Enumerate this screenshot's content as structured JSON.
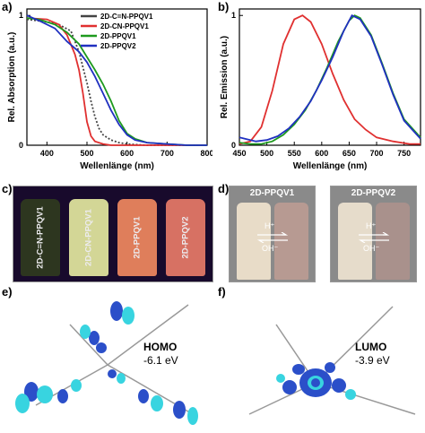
{
  "panels": {
    "a": {
      "letter": "a)"
    },
    "b": {
      "letter": "b)"
    },
    "c": {
      "letter": "c)"
    },
    "d": {
      "letter": "d)"
    },
    "e": {
      "letter": "e)"
    },
    "f": {
      "letter": "f)"
    }
  },
  "chart_data": [
    {
      "type": "line",
      "panel": "a",
      "xlabel": "Wellenlänge (nm)",
      "ylabel": "Rel. Absorption (a.u.)",
      "xlim": [
        350,
        800
      ],
      "ylim": [
        0,
        1.05
      ],
      "xticks": [
        "400",
        "500",
        "600",
        "700",
        "800"
      ],
      "yticks": [
        "0",
        "1"
      ],
      "legend": {
        "placement": "top-right"
      },
      "series": [
        {
          "name": "2D-C=N-PPQV1",
          "color": "#444444",
          "dash": "dotted",
          "x": [
            350,
            400,
            430,
            460,
            480,
            500,
            510,
            520,
            530,
            540,
            560,
            580,
            600,
            650,
            700,
            800
          ],
          "y": [
            0.97,
            0.95,
            0.93,
            0.88,
            0.72,
            0.48,
            0.34,
            0.22,
            0.13,
            0.08,
            0.04,
            0.02,
            0.01,
            0.0,
            0.0,
            0.0
          ]
        },
        {
          "name": "2D-CN-PPQV1",
          "color": "#e03030",
          "dash": "solid",
          "x": [
            350,
            400,
            430,
            450,
            470,
            480,
            490,
            500,
            510,
            520,
            540,
            560,
            600,
            650,
            700,
            800
          ],
          "y": [
            0.98,
            0.97,
            0.93,
            0.85,
            0.7,
            0.58,
            0.4,
            0.18,
            0.07,
            0.03,
            0.01,
            0.0,
            0.0,
            0.0,
            0.0,
            0.0
          ]
        },
        {
          "name": "2D-PPQV1",
          "color": "#1e9a1e",
          "dash": "solid",
          "x": [
            350,
            380,
            420,
            450,
            480,
            500,
            520,
            540,
            560,
            580,
            600,
            620,
            650,
            700,
            750,
            800
          ],
          "y": [
            0.98,
            0.97,
            0.93,
            0.87,
            0.78,
            0.68,
            0.58,
            0.47,
            0.34,
            0.19,
            0.09,
            0.05,
            0.02,
            0.01,
            0.0,
            0.0
          ]
        },
        {
          "name": "2D-PPQV2",
          "color": "#2030c0",
          "dash": "solid",
          "x": [
            350,
            380,
            420,
            450,
            480,
            500,
            520,
            540,
            560,
            580,
            600,
            620,
            650,
            700,
            750,
            800
          ],
          "y": [
            1.0,
            0.96,
            0.9,
            0.8,
            0.72,
            0.64,
            0.53,
            0.4,
            0.27,
            0.16,
            0.08,
            0.04,
            0.02,
            0.01,
            0.0,
            0.0
          ]
        }
      ]
    },
    {
      "type": "line",
      "panel": "b",
      "xlabel": "Wellenlänge (nm)",
      "ylabel": "Rel. Emission (a.u.)",
      "xlim": [
        450,
        780
      ],
      "ylim": [
        0,
        1.05
      ],
      "xticks": [
        "450",
        "500",
        "550",
        "600",
        "650",
        "700",
        "750"
      ],
      "yticks": [
        "0",
        "1"
      ],
      "series": [
        {
          "name": "red",
          "color": "#e03030",
          "x": [
            450,
            470,
            490,
            510,
            530,
            550,
            565,
            580,
            600,
            620,
            640,
            660,
            680,
            700,
            730,
            760,
            780
          ],
          "y": [
            0.01,
            0.03,
            0.14,
            0.42,
            0.78,
            0.97,
            1.0,
            0.95,
            0.78,
            0.55,
            0.35,
            0.2,
            0.12,
            0.06,
            0.03,
            0.01,
            0.01
          ]
        },
        {
          "name": "green",
          "color": "#1e9a1e",
          "x": [
            450,
            470,
            490,
            510,
            530,
            550,
            570,
            590,
            610,
            630,
            650,
            660,
            670,
            690,
            710,
            730,
            750,
            780
          ],
          "y": [
            0.02,
            0.01,
            0.01,
            0.03,
            0.08,
            0.16,
            0.27,
            0.42,
            0.6,
            0.8,
            0.96,
            1.0,
            0.98,
            0.85,
            0.63,
            0.4,
            0.2,
            0.06
          ]
        },
        {
          "name": "blue",
          "color": "#2030c0",
          "x": [
            450,
            460,
            480,
            500,
            520,
            540,
            560,
            580,
            600,
            620,
            640,
            655,
            670,
            690,
            710,
            730,
            750,
            780
          ],
          "y": [
            0.06,
            0.05,
            0.03,
            0.04,
            0.07,
            0.13,
            0.22,
            0.34,
            0.5,
            0.68,
            0.88,
            1.0,
            0.97,
            0.84,
            0.62,
            0.39,
            0.19,
            0.05
          ]
        }
      ]
    }
  ],
  "vials_c": {
    "labels": [
      "2D-C=N-PPQV1",
      "2D-CN-PPQV1",
      "2D-PPQV1",
      "2D-PPQV2"
    ],
    "colors": [
      "#2f3a1e",
      "#e3e8a0",
      "#f08860",
      "#e87a68"
    ]
  },
  "vials_d": {
    "labels": [
      "2D-PPQV1",
      "2D-PPQV2"
    ],
    "acid_label": "H⁺",
    "base_label": "OH⁻"
  },
  "orbitals": {
    "homo": {
      "name": "HOMO",
      "energy": "-6.1 eV"
    },
    "lumo": {
      "name": "LUMO",
      "energy": "-3.9 eV"
    }
  }
}
